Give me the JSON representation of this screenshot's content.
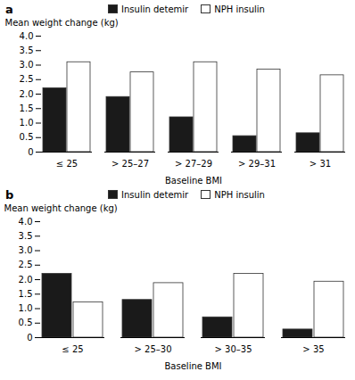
{
  "chart_data": [
    {
      "type": "bar",
      "title": "a",
      "categories": [
        "≤ 25",
        "> 25–27",
        "> 27–29",
        "> 29–31",
        "> 31"
      ],
      "series": [
        {
          "name": "Insulin detemir",
          "color": "#1a1a1a",
          "values": [
            2.2,
            1.9,
            1.2,
            0.55,
            0.65
          ]
        },
        {
          "name": "NPH insulin",
          "color": "#ffffff",
          "values": [
            3.1,
            2.75,
            3.1,
            2.85,
            2.65
          ]
        }
      ],
      "xlabel": "Baseline BMI",
      "ylabel": "Mean weight change (kg)",
      "ylim": [
        0,
        4.0
      ],
      "yticks": [
        0,
        0.5,
        {
          "value": 1.0,
          "label": "1.0"
        },
        1.5,
        {
          "value": 2.0,
          "label": "2.0"
        },
        2.5,
        {
          "value": 3.0,
          "label": "3.0"
        },
        3.5,
        {
          "value": 4.0,
          "label": "4.0"
        }
      ],
      "legend": "top",
      "grid": false
    },
    {
      "type": "bar",
      "title": "b",
      "categories": [
        "≤ 25",
        "> 25–30",
        "> 30–35",
        "> 35"
      ],
      "series": [
        {
          "name": "Insulin detemir",
          "color": "#1a1a1a",
          "values": [
            2.2,
            1.3,
            0.7,
            0.28
          ]
        },
        {
          "name": "NPH insulin",
          "color": "#ffffff",
          "values": [
            1.22,
            1.88,
            2.2,
            1.93
          ]
        }
      ],
      "xlabel": "Baseline BMI",
      "ylabel": "Mean weight change (kg)",
      "ylim": [
        0,
        4.0
      ],
      "yticks": [
        0,
        0.5,
        {
          "value": 1.0,
          "label": "1.0"
        },
        1.5,
        {
          "value": 2.0,
          "label": "2.0"
        },
        2.5,
        {
          "value": 3.0,
          "label": "3.0"
        },
        3.5,
        {
          "value": 4.0,
          "label": "4.0"
        }
      ],
      "legend": "top",
      "grid": false
    }
  ]
}
